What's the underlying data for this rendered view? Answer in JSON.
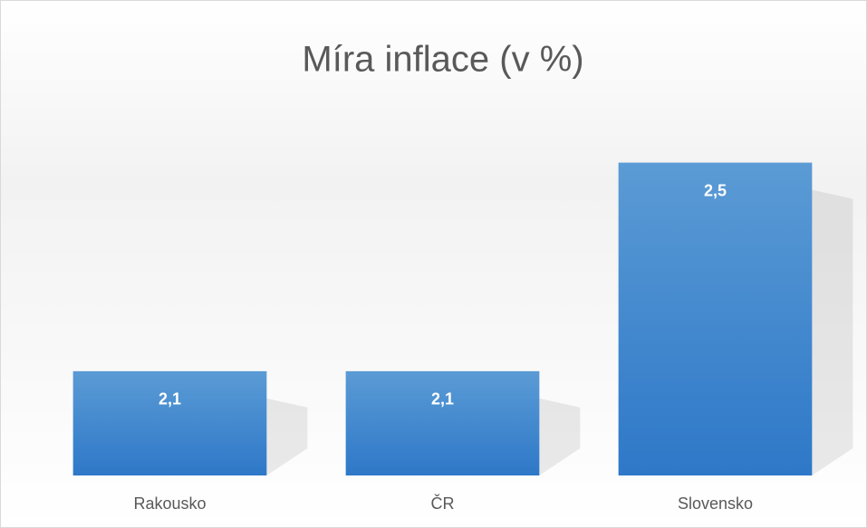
{
  "chart_data": {
    "type": "bar",
    "title": "Míra inflace (v %)",
    "categories": [
      "Rakousko",
      "ČR",
      "Slovensko"
    ],
    "values": [
      2.1,
      2.1,
      2.5
    ],
    "value_labels": [
      "2,1",
      "2,1",
      "2,5"
    ],
    "color": "#3f86d0",
    "ylim": [
      1.9,
      2.6
    ]
  }
}
